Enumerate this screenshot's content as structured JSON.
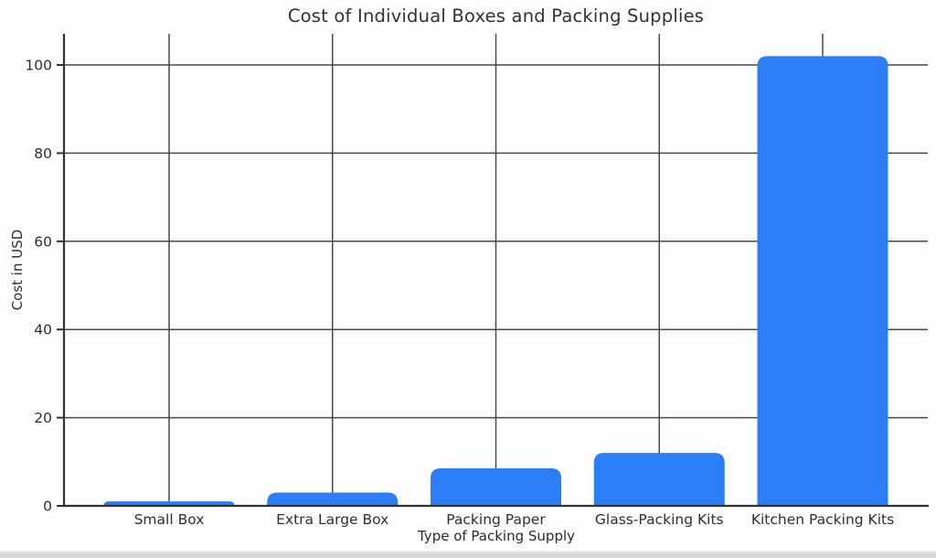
{
  "chart_data": {
    "type": "bar",
    "title": "Cost of Individual Boxes and Packing Supplies",
    "xlabel": "Type of Packing Supply",
    "ylabel": "Cost in USD",
    "categories": [
      "Small Box",
      "Extra Large Box",
      "Packing Paper",
      "Glass-Packing Kits",
      "Kitchen Packing Kits"
    ],
    "values": [
      1,
      3,
      8.5,
      12,
      102
    ],
    "ylim": [
      0,
      107
    ],
    "yticks": [
      0,
      20,
      40,
      60,
      80,
      100
    ],
    "grid": true,
    "legend": "none",
    "bar_color": "#2b7ef5",
    "grid_color": "#4a4a4a",
    "spine_color": "#323232",
    "tick_label_color": "#2f2f2f",
    "title_color": "#2e323b"
  }
}
